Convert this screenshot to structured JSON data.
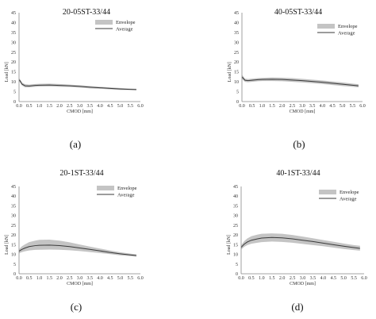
{
  "chart_data": [
    {
      "type": "line",
      "title": "20-05ST-33/44",
      "caption": "(a)",
      "xlabel": "CMOD [mm]",
      "ylabel": "Load [kN]",
      "xlim": [
        0,
        6.0
      ],
      "ylim": [
        0,
        45
      ],
      "xticks": [
        "0.0",
        "0.5",
        "1.0",
        "1.5",
        "2.0",
        "2.5",
        "3.0",
        "3.5",
        "4.0",
        "4.5",
        "5.0",
        "5.5",
        "6.0"
      ],
      "yticks": [
        "0",
        "5",
        "10",
        "15",
        "20",
        "25",
        "30",
        "35",
        "40",
        "45"
      ],
      "legend": [
        "Envelope",
        "Average"
      ],
      "legend_position": "top-right",
      "series": [
        {
          "name": "Average",
          "x": [
            0.0,
            0.05,
            0.15,
            0.3,
            0.5,
            0.8,
            1.0,
            1.5,
            2.0,
            2.5,
            3.0,
            3.5,
            4.0,
            4.5,
            5.0,
            5.5,
            5.8
          ],
          "y": [
            11.0,
            10.5,
            8.8,
            8.0,
            7.9,
            8.2,
            8.3,
            8.4,
            8.2,
            8.0,
            7.7,
            7.3,
            7.0,
            6.7,
            6.4,
            6.2,
            6.1
          ]
        },
        {
          "name": "Envelope",
          "x": [
            0.0,
            0.05,
            0.15,
            0.3,
            0.5,
            0.8,
            1.0,
            1.5,
            2.0,
            2.5,
            3.0,
            3.5,
            4.0,
            4.5,
            5.0,
            5.5,
            5.8
          ],
          "upper": [
            11.8,
            11.3,
            9.6,
            8.8,
            8.6,
            8.9,
            9.0,
            9.1,
            8.9,
            8.6,
            8.3,
            7.9,
            7.5,
            7.2,
            6.9,
            6.6,
            6.5
          ],
          "lower": [
            10.2,
            9.7,
            8.1,
            7.2,
            7.2,
            7.5,
            7.6,
            7.7,
            7.5,
            7.4,
            7.1,
            6.7,
            6.5,
            6.2,
            5.9,
            5.8,
            5.7
          ]
        }
      ]
    },
    {
      "type": "line",
      "title": "40-05ST-33/44",
      "caption": "(b)",
      "xlabel": "CMOD [mm]",
      "ylabel": "Load [kN]",
      "xlim": [
        0,
        6.0
      ],
      "ylim": [
        0,
        45
      ],
      "xticks": [
        "0.0",
        "0.5",
        "1.0",
        "1.5",
        "2.0",
        "2.5",
        "3.0",
        "3.5",
        "4.0",
        "4.5",
        "5.0",
        "5.5",
        "6.0"
      ],
      "yticks": [
        "0",
        "5",
        "10",
        "15",
        "20",
        "25",
        "30",
        "35",
        "40",
        "45"
      ],
      "legend": [
        "Envelope",
        "Average"
      ],
      "legend_position": "top-right",
      "series": [
        {
          "name": "Average",
          "x": [
            0.0,
            0.05,
            0.15,
            0.3,
            0.5,
            0.8,
            1.0,
            1.5,
            2.0,
            2.5,
            3.0,
            3.5,
            4.0,
            4.5,
            5.0,
            5.5,
            5.8
          ],
          "y": [
            12.5,
            12.0,
            10.8,
            10.6,
            10.8,
            11.1,
            11.2,
            11.3,
            11.2,
            10.9,
            10.6,
            10.2,
            9.8,
            9.3,
            8.8,
            8.3,
            8.0
          ]
        },
        {
          "name": "Envelope",
          "x": [
            0.0,
            0.05,
            0.15,
            0.3,
            0.5,
            0.8,
            1.0,
            1.5,
            2.0,
            2.5,
            3.0,
            3.5,
            4.0,
            4.5,
            5.0,
            5.5,
            5.8
          ],
          "upper": [
            13.5,
            13.0,
            11.6,
            11.4,
            11.6,
            11.9,
            12.0,
            12.2,
            12.1,
            11.9,
            11.5,
            11.1,
            10.7,
            10.2,
            9.7,
            9.1,
            8.8
          ],
          "lower": [
            11.5,
            11.0,
            10.0,
            9.8,
            10.0,
            10.3,
            10.4,
            10.4,
            10.3,
            10.0,
            9.7,
            9.3,
            8.9,
            8.4,
            7.9,
            7.5,
            7.2
          ]
        }
      ]
    },
    {
      "type": "line",
      "title": "20-1ST-33/44",
      "caption": "(c)",
      "xlabel": "CMOD [mm]",
      "ylabel": "Load [kN]",
      "xlim": [
        0,
        6.0
      ],
      "ylim": [
        0,
        45
      ],
      "xticks": [
        "0.0",
        "0.5",
        "1.0",
        "1.5",
        "2.0",
        "2.5",
        "3.0",
        "3.5",
        "4.0",
        "4.5",
        "5.0",
        "5.5",
        "6.0"
      ],
      "yticks": [
        "0",
        "5",
        "10",
        "15",
        "20",
        "25",
        "30",
        "35",
        "40",
        "45"
      ],
      "legend": [
        "Envelope",
        "Average"
      ],
      "legend_position": "top-right",
      "series": [
        {
          "name": "Average",
          "x": [
            0.0,
            0.05,
            0.15,
            0.3,
            0.5,
            0.8,
            1.0,
            1.5,
            2.0,
            2.5,
            3.0,
            3.5,
            4.0,
            4.5,
            5.0,
            5.5,
            5.8
          ],
          "y": [
            11.5,
            12.0,
            12.6,
            13.3,
            14.0,
            14.5,
            14.7,
            14.8,
            14.5,
            14.0,
            13.3,
            12.6,
            11.8,
            11.0,
            10.3,
            9.7,
            9.4
          ]
        },
        {
          "name": "Envelope",
          "x": [
            0.0,
            0.05,
            0.15,
            0.3,
            0.5,
            0.8,
            1.0,
            1.5,
            2.0,
            2.5,
            3.0,
            3.5,
            4.0,
            4.5,
            5.0,
            5.5,
            5.8
          ],
          "upper": [
            12.5,
            13.2,
            14.2,
            15.2,
            16.3,
            17.1,
            17.5,
            17.6,
            17.1,
            16.2,
            15.1,
            14.0,
            13.0,
            12.0,
            11.1,
            10.4,
            10.0
          ],
          "lower": [
            10.5,
            10.8,
            11.2,
            11.6,
            12.0,
            12.3,
            12.4,
            12.5,
            12.4,
            12.1,
            11.7,
            11.2,
            10.7,
            10.1,
            9.5,
            9.1,
            8.8
          ]
        }
      ]
    },
    {
      "type": "line",
      "title": "40-1ST-33/44",
      "caption": "(d)",
      "xlabel": "CMOD [mm]",
      "ylabel": "Load [kN]",
      "xlim": [
        0,
        6.0
      ],
      "ylim": [
        0,
        45
      ],
      "xticks": [
        "0.0",
        "0.5",
        "1.0",
        "1.5",
        "2.0",
        "2.5",
        "3.0",
        "3.5",
        "4.0",
        "4.5",
        "5.0",
        "5.5",
        "6.0"
      ],
      "yticks": [
        "0",
        "5",
        "10",
        "15",
        "20",
        "25",
        "30",
        "35",
        "40",
        "45"
      ],
      "legend": [
        "Envelope",
        "Average"
      ],
      "legend_position": "top-right",
      "series": [
        {
          "name": "Average",
          "x": [
            0.0,
            0.05,
            0.15,
            0.3,
            0.5,
            0.8,
            1.0,
            1.5,
            2.0,
            2.5,
            3.0,
            3.5,
            4.0,
            4.5,
            5.0,
            5.5,
            5.8
          ],
          "y": [
            13.5,
            14.2,
            15.3,
            16.4,
            17.3,
            18.0,
            18.4,
            18.7,
            18.5,
            18.0,
            17.3,
            16.6,
            15.8,
            15.0,
            14.2,
            13.5,
            13.1
          ]
        },
        {
          "name": "Envelope",
          "x": [
            0.0,
            0.05,
            0.15,
            0.3,
            0.5,
            0.8,
            1.0,
            1.5,
            2.0,
            2.5,
            3.0,
            3.5,
            4.0,
            4.5,
            5.0,
            5.5,
            5.8
          ],
          "upper": [
            14.5,
            15.4,
            16.8,
            18.2,
            19.4,
            20.2,
            20.6,
            20.8,
            20.6,
            20.0,
            19.2,
            18.3,
            17.4,
            16.5,
            15.6,
            14.8,
            14.4
          ],
          "lower": [
            12.5,
            13.0,
            13.9,
            14.8,
            15.5,
            16.0,
            16.3,
            16.6,
            16.4,
            16.0,
            15.4,
            14.8,
            14.2,
            13.5,
            12.8,
            12.2,
            11.9
          ]
        }
      ]
    }
  ],
  "colors": {
    "envelope": "#c4c4c4",
    "average": "#3a3a3a",
    "axis": "#888888"
  }
}
